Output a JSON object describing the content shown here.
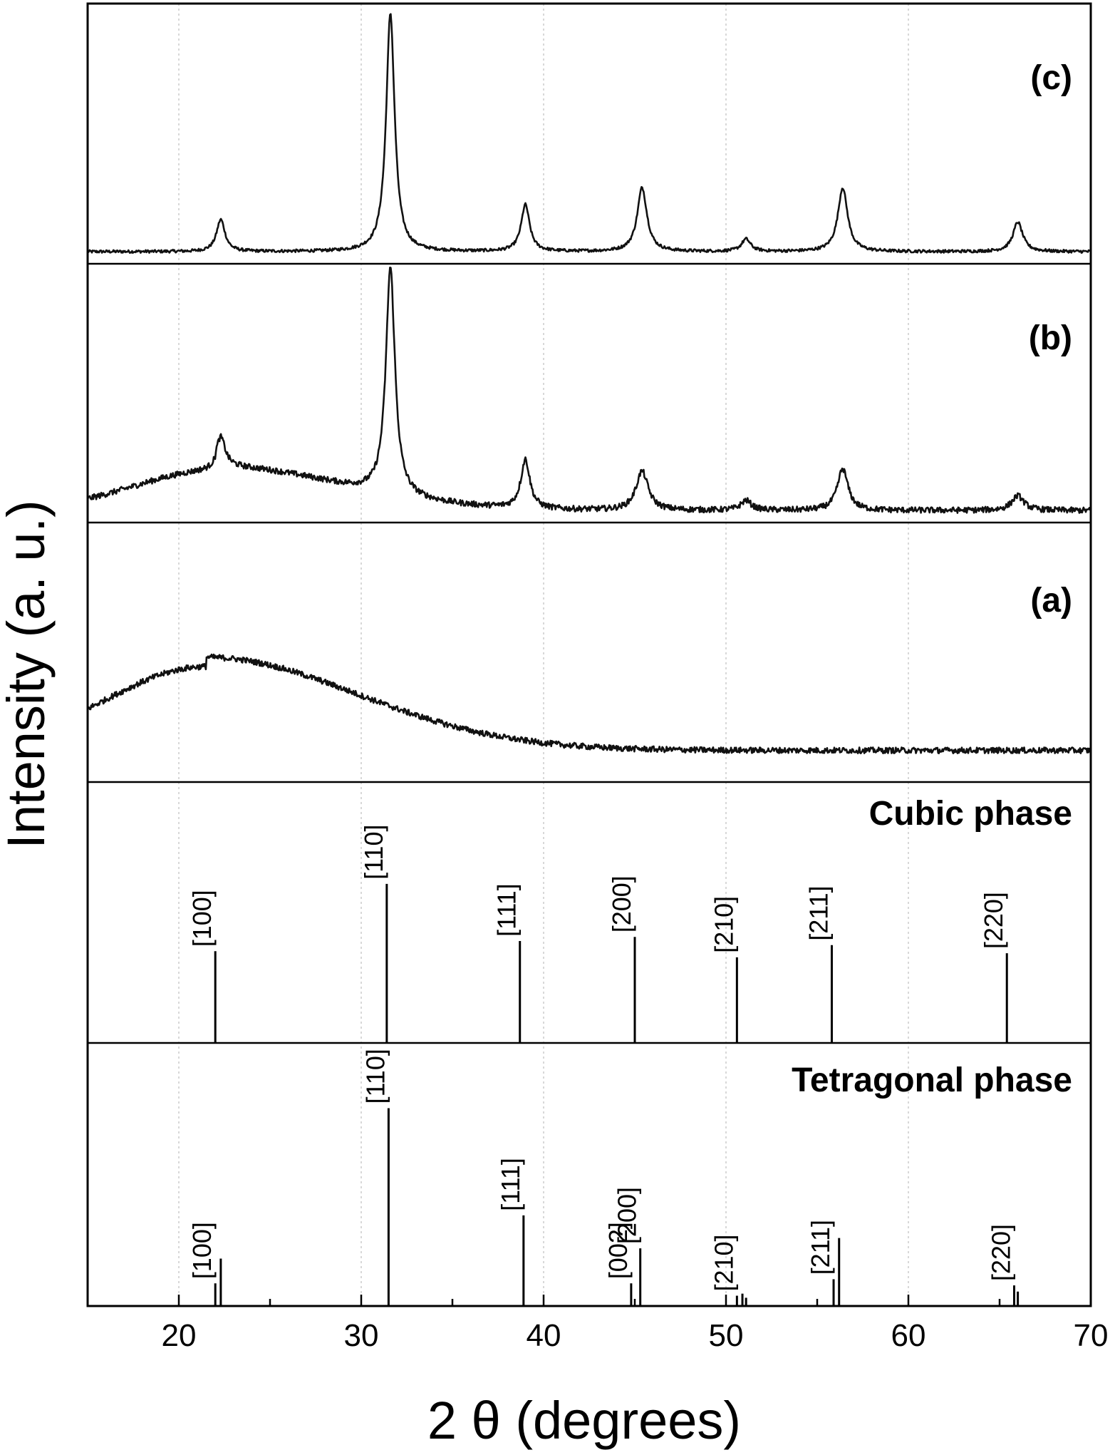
{
  "chart_data": {
    "type": "line",
    "xlabel": "2 θ (degrees)",
    "ylabel": "Intensity (a. u.)",
    "xlim": [
      15,
      70
    ],
    "xticks": [
      20,
      30,
      40,
      50,
      60,
      70
    ],
    "grid": true,
    "panels": [
      {
        "label": "(c)",
        "baseline": 0.02,
        "peaks": [
          {
            "pos": 22.3,
            "height": 0.13,
            "width": 0.28
          },
          {
            "pos": 31.6,
            "height": 0.97,
            "width": 0.28
          },
          {
            "pos": 39.0,
            "height": 0.19,
            "width": 0.28
          },
          {
            "pos": 45.4,
            "height": 0.26,
            "width": 0.32
          },
          {
            "pos": 51.1,
            "height": 0.05,
            "width": 0.3
          },
          {
            "pos": 56.4,
            "height": 0.26,
            "width": 0.32
          },
          {
            "pos": 66.0,
            "height": 0.12,
            "width": 0.32
          }
        ]
      },
      {
        "label": "(b)",
        "baseline": 0.02,
        "hump": {
          "center": 22.0,
          "height": 0.18,
          "width": 4.5
        },
        "peaks": [
          {
            "pos": 22.3,
            "height": 0.12,
            "width": 0.3
          },
          {
            "pos": 31.6,
            "height": 0.93,
            "width": 0.3
          },
          {
            "pos": 39.0,
            "height": 0.2,
            "width": 0.3
          },
          {
            "pos": 45.4,
            "height": 0.16,
            "width": 0.4
          },
          {
            "pos": 51.1,
            "height": 0.04,
            "width": 0.35
          },
          {
            "pos": 56.4,
            "height": 0.17,
            "width": 0.35
          },
          {
            "pos": 66.0,
            "height": 0.06,
            "width": 0.4
          }
        ]
      },
      {
        "label": "(a)",
        "baseline": 0.1,
        "hump": {
          "center": 21.5,
          "height": 0.38,
          "width": 5.5
        },
        "peaks": []
      }
    ],
    "reference_phases": [
      {
        "title": "Cubic phase",
        "lines": [
          {
            "hkl": "[100]",
            "pos": 22.0,
            "intensity": 0.45
          },
          {
            "hkl": "[110]",
            "pos": 31.4,
            "intensity": 0.78
          },
          {
            "hkl": "[111]",
            "pos": 38.7,
            "intensity": 0.5
          },
          {
            "hkl": "[200]",
            "pos": 45.0,
            "intensity": 0.52
          },
          {
            "hkl": "[210]",
            "pos": 50.6,
            "intensity": 0.42
          },
          {
            "hkl": "[211]",
            "pos": 55.8,
            "intensity": 0.48
          },
          {
            "hkl": "[220]",
            "pos": 65.4,
            "intensity": 0.44
          }
        ]
      },
      {
        "title": "Tetragonal phase",
        "lines": [
          {
            "hkl": "[100]",
            "pos": 22.0,
            "intensity": 0.11
          },
          {
            "hkl": "",
            "pos": 22.3,
            "intensity": 0.23
          },
          {
            "hkl": "[110]",
            "pos": 31.5,
            "intensity": 0.96
          },
          {
            "hkl": "[111]",
            "pos": 38.9,
            "intensity": 0.44
          },
          {
            "hkl": "[002]",
            "pos": 44.8,
            "intensity": 0.11
          },
          {
            "hkl": "[200]",
            "pos": 45.3,
            "intensity": 0.28
          },
          {
            "hkl": "[210]",
            "pos": 50.6,
            "intensity": 0.05
          },
          {
            "hkl": "",
            "pos": 50.9,
            "intensity": 0.06
          },
          {
            "hkl": "",
            "pos": 51.1,
            "intensity": 0.04
          },
          {
            "hkl": "[211]",
            "pos": 55.9,
            "intensity": 0.13
          },
          {
            "hkl": "",
            "pos": 56.2,
            "intensity": 0.33
          },
          {
            "hkl": "[220]",
            "pos": 65.8,
            "intensity": 0.1
          },
          {
            "hkl": "",
            "pos": 66.0,
            "intensity": 0.07
          }
        ]
      }
    ]
  }
}
